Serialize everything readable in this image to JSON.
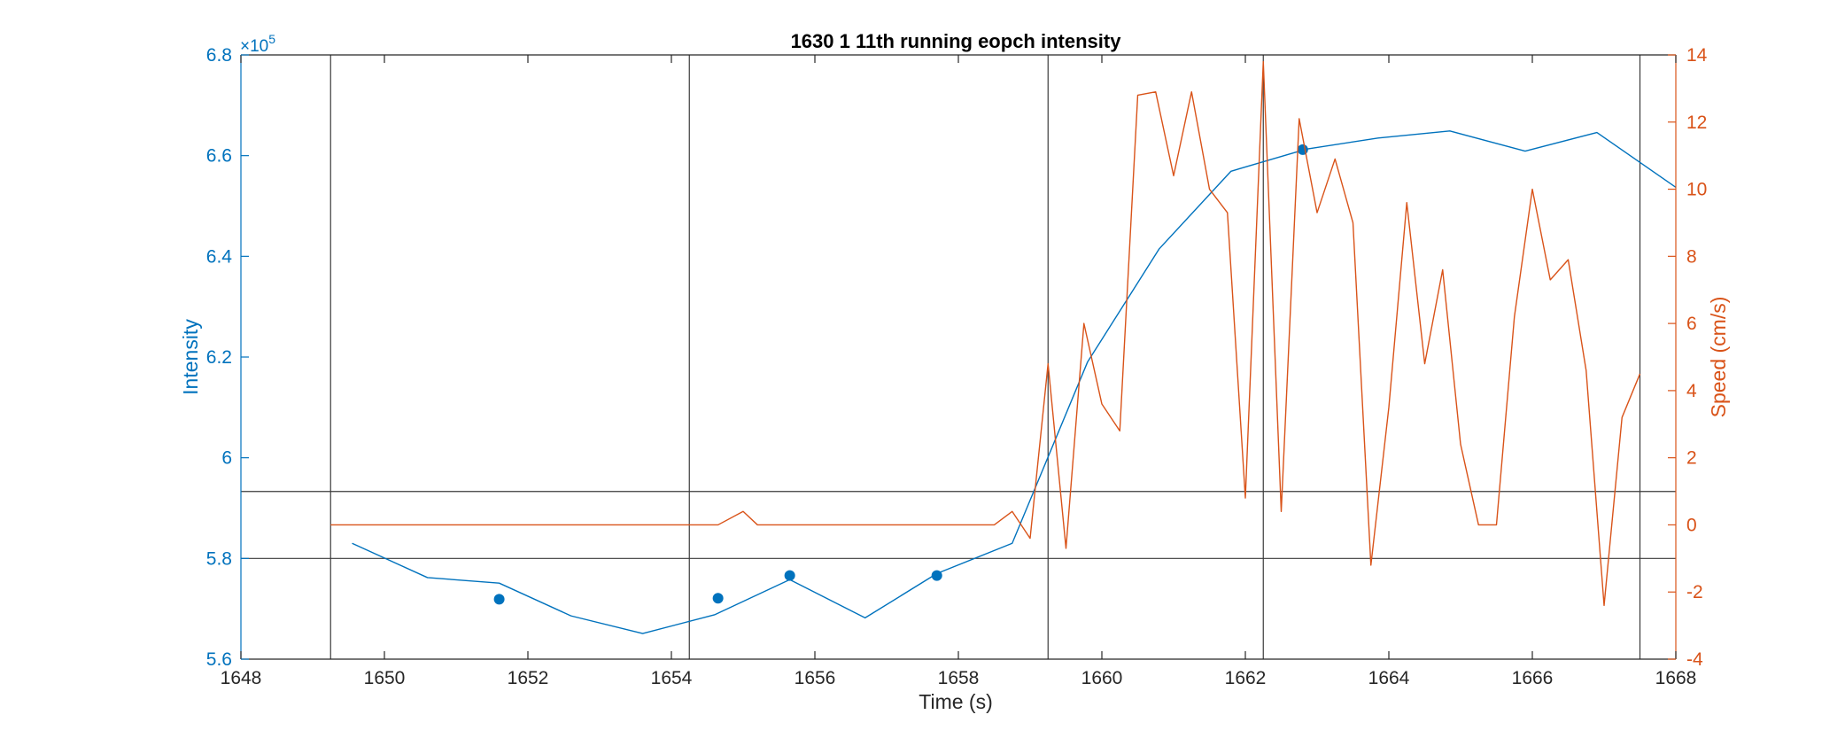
{
  "chart_data": {
    "type": "line",
    "title": "1630 1 11th running eopch intensity",
    "xlabel": "Time (s)",
    "xlim": [
      1648,
      1668
    ],
    "x_ticks": [
      1648,
      1650,
      1652,
      1654,
      1656,
      1658,
      1660,
      1662,
      1664,
      1666,
      1668
    ],
    "left_axis": {
      "label": "Intensity",
      "ylim": [
        5.6,
        6.8
      ],
      "ticks": [
        5.6,
        5.8,
        6,
        6.2,
        6.4,
        6.6,
        6.8
      ],
      "tick_labels": [
        "5.6",
        "5.8",
        "6",
        "6.2",
        "6.4",
        "6.6",
        "6.8"
      ],
      "exponent_label": "×10",
      "exponent_power": "5",
      "color": "#0072BD"
    },
    "right_axis": {
      "label": "Speed (cm/s)",
      "ylim": [
        -4,
        14
      ],
      "ticks": [
        -4,
        -2,
        0,
        2,
        4,
        6,
        8,
        10,
        12,
        14
      ],
      "tick_labels": [
        "-4",
        "-2",
        "0",
        "2",
        "4",
        "6",
        "8",
        "10",
        "12",
        "14"
      ],
      "color": "#D95319"
    },
    "series": [
      {
        "axis": "left",
        "style": "line",
        "color": "#0072BD",
        "x": [
          1649.55,
          1650.6,
          1651.6,
          1652.6,
          1653.6,
          1654.6,
          1655.65,
          1656.7,
          1657.7,
          1658.75,
          1659.8,
          1660.8,
          1661.8,
          1662.85,
          1663.85,
          1664.85,
          1665.9,
          1666.9,
          1668.0
        ],
        "y": [
          5.83,
          5.762,
          5.751,
          5.686,
          5.651,
          5.688,
          5.758,
          5.682,
          5.77,
          5.83,
          6.19,
          6.415,
          6.569,
          6.613,
          6.635,
          6.649,
          6.609,
          6.646,
          6.537
        ]
      },
      {
        "axis": "left",
        "style": "markers",
        "color": "#0072BD",
        "x": [
          1651.6,
          1654.65,
          1655.65,
          1657.7,
          1662.8
        ],
        "y": [
          5.719,
          5.721,
          5.766,
          5.766,
          6.612
        ]
      },
      {
        "axis": "right",
        "style": "line",
        "color": "#D95319",
        "x": [
          1649.25,
          1650.0,
          1651.0,
          1652.0,
          1653.0,
          1654.0,
          1654.65,
          1655.0,
          1655.2,
          1656.0,
          1657.0,
          1658.0,
          1658.5,
          1658.75,
          1659.0,
          1659.25,
          1659.5,
          1659.75,
          1660.0,
          1660.25,
          1660.5,
          1660.75,
          1661.0,
          1661.25,
          1661.5,
          1661.75,
          1662.0,
          1662.25,
          1662.5,
          1662.75,
          1663.0,
          1663.25,
          1663.5,
          1663.75,
          1664.0,
          1664.25,
          1664.5,
          1664.75,
          1665.0,
          1665.25,
          1665.5,
          1665.75,
          1666.0,
          1666.25,
          1666.5,
          1666.75,
          1667.0,
          1667.25,
          1667.5
        ],
        "y": [
          0,
          0,
          0,
          0,
          0,
          0,
          0,
          0.4,
          0,
          0,
          0,
          0,
          0,
          0.4,
          -0.4,
          4.8,
          -0.7,
          6.0,
          3.6,
          2.8,
          12.8,
          12.9,
          10.4,
          12.9,
          10.0,
          9.3,
          0.8,
          13.8,
          0.4,
          12.1,
          9.3,
          10.9,
          9.0,
          -1.2,
          3.5,
          9.6,
          4.8,
          7.6,
          2.4,
          0,
          0,
          6.2,
          10.0,
          7.3,
          7.9,
          4.6,
          -2.4,
          3.2,
          4.5
        ]
      }
    ],
    "reference_lines": {
      "vertical_x": [
        1649.25,
        1654.25,
        1659.25,
        1662.25,
        1667.5
      ],
      "horizontal_intensity": [
        5.8,
        5.933
      ]
    },
    "grid": false,
    "legend": "none"
  }
}
